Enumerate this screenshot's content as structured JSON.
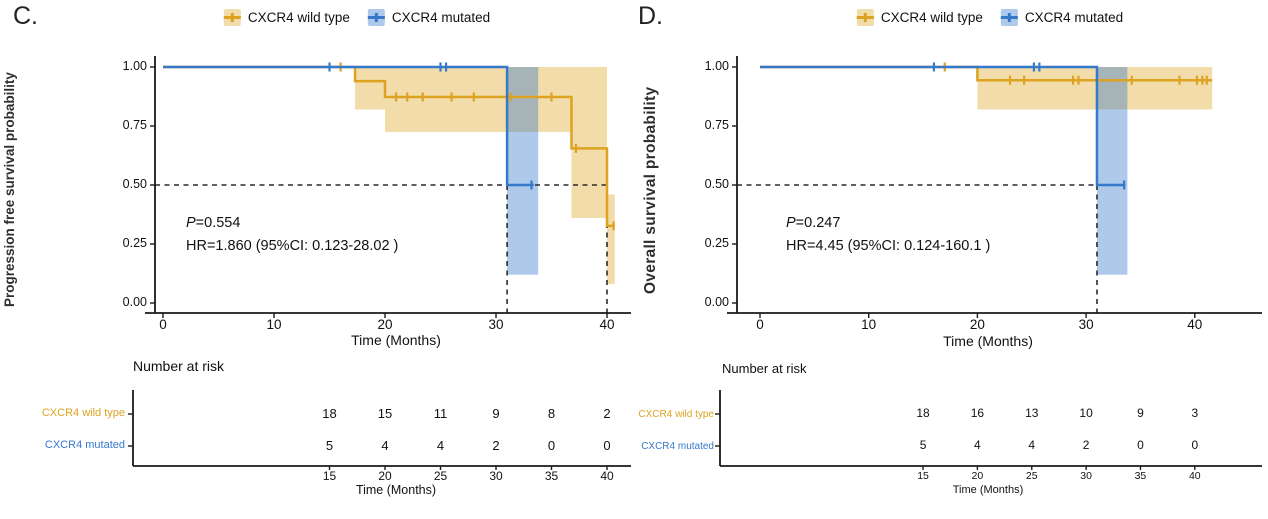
{
  "chart_data": [
    {
      "type": "km_survival",
      "panel_letter": "C.",
      "y_label": "Progression free survival probability",
      "x_label": "Time (Months)",
      "xlim": [
        0,
        42
      ],
      "ylim": [
        0,
        1
      ],
      "x_ticks": [
        0,
        10,
        20,
        30,
        40
      ],
      "y_ticks": [
        1.0,
        0.75,
        0.5,
        0.25,
        0.0
      ],
      "y_tick_labels": [
        "1.00",
        "0.75",
        "0.50",
        "0.25",
        "0.00"
      ],
      "grid": false,
      "legend_position": "top",
      "annotation": {
        "p_label": "P",
        "p_value": "=0.554",
        "hr": "HR=1.860 (95%CI: 0.123-28.02 )"
      },
      "median": {
        "h_y": 0.5,
        "h_x_end": 40,
        "v_x": [
          31,
          40
        ]
      },
      "series": [
        {
          "name": "CXCR4 wild type",
          "color": "#DDA320",
          "band_color": "rgba(221,163,32,0.38)",
          "steps": [
            [
              0,
              1
            ],
            [
              17.3,
              1
            ],
            [
              17.3,
              0.94
            ],
            [
              20,
              0.94
            ],
            [
              20,
              0.873
            ],
            [
              36.8,
              0.873
            ],
            [
              36.8,
              0.655
            ],
            [
              40,
              0.655
            ],
            [
              40,
              0.327
            ],
            [
              40.7,
              0.327
            ]
          ],
          "censors": [
            [
              16,
              1
            ],
            [
              21,
              0.873
            ],
            [
              22,
              0.873
            ],
            [
              23.4,
              0.873
            ],
            [
              26,
              0.873
            ],
            [
              28,
              0.873
            ],
            [
              31.3,
              0.873
            ],
            [
              35,
              0.873
            ],
            [
              37.2,
              0.655
            ],
            [
              40.6,
              0.327
            ]
          ],
          "band": [
            {
              "x0": 17.3,
              "x1": 20,
              "lo": 0.82,
              "hi": 1
            },
            {
              "x0": 20,
              "x1": 36.8,
              "lo": 0.725,
              "hi": 1
            },
            {
              "x0": 36.8,
              "x1": 40,
              "lo": 0.36,
              "hi": 1
            },
            {
              "x0": 40,
              "x1": 40.7,
              "lo": 0.08,
              "hi": 0.46
            }
          ]
        },
        {
          "name": "CXCR4 mutated",
          "color": "#3679CB",
          "band_color": "rgba(54,121,203,0.40)",
          "steps": [
            [
              0,
              1
            ],
            [
              31,
              1
            ],
            [
              31,
              0.5
            ],
            [
              33.4,
              0.5
            ]
          ],
          "censors": [
            [
              15,
              1
            ],
            [
              25,
              1
            ],
            [
              25.5,
              1
            ],
            [
              33.2,
              0.5
            ]
          ],
          "band": [
            {
              "x0": 31,
              "x1": 33.8,
              "lo": 0.12,
              "hi": 1
            }
          ]
        }
      ],
      "risk_table": {
        "title": "Number at risk",
        "x_label": "Time (Months)",
        "x_ticks": [
          15,
          20,
          25,
          30,
          35,
          40
        ],
        "rows": [
          {
            "label": "CXCR4 wild type",
            "values": [
              18,
              15,
              11,
              9,
              8,
              2
            ]
          },
          {
            "label": "CXCR4 mutated",
            "values": [
              5,
              4,
              4,
              2,
              0,
              0
            ]
          }
        ]
      }
    },
    {
      "type": "km_survival",
      "panel_letter": "D.",
      "y_label": "Overall survival probability",
      "x_label": "Time (Months)",
      "xlim": [
        0,
        42
      ],
      "ylim": [
        0,
        1
      ],
      "x_ticks": [
        0,
        10,
        20,
        30,
        40
      ],
      "y_ticks": [
        1.0,
        0.75,
        0.5,
        0.25,
        0.0
      ],
      "y_tick_labels": [
        "1.00",
        "0.75",
        "0.50",
        "0.25",
        "0.00"
      ],
      "grid": false,
      "legend_position": "top",
      "annotation": {
        "p_label": "P",
        "p_value": "=0.247",
        "hr": "HR=4.45 (95%CI: 0.124-160.1 )"
      },
      "median": {
        "h_y": 0.5,
        "h_x_end": 31,
        "v_x": [
          31
        ]
      },
      "series": [
        {
          "name": "CXCR4 wild type",
          "color": "#DDA320",
          "band_color": "rgba(221,163,32,0.38)",
          "steps": [
            [
              0,
              1
            ],
            [
              20,
              1
            ],
            [
              20,
              0.944
            ],
            [
              41.6,
              0.944
            ]
          ],
          "censors": [
            [
              17,
              1
            ],
            [
              23,
              0.944
            ],
            [
              24.3,
              0.944
            ],
            [
              28.8,
              0.944
            ],
            [
              29.3,
              0.944
            ],
            [
              31,
              0.944
            ],
            [
              34.2,
              0.944
            ],
            [
              38.6,
              0.944
            ],
            [
              40.2,
              0.944
            ],
            [
              40.7,
              0.944
            ],
            [
              41.1,
              0.944
            ]
          ],
          "band": [
            {
              "x0": 20,
              "x1": 41.6,
              "lo": 0.82,
              "hi": 1
            }
          ]
        },
        {
          "name": "CXCR4 mutated",
          "color": "#3679CB",
          "band_color": "rgba(54,121,203,0.40)",
          "steps": [
            [
              0,
              1
            ],
            [
              31,
              1
            ],
            [
              31,
              0.5
            ],
            [
              33.6,
              0.5
            ]
          ],
          "censors": [
            [
              16,
              1
            ],
            [
              25.2,
              1
            ],
            [
              25.7,
              1
            ],
            [
              33.5,
              0.5
            ]
          ],
          "band": [
            {
              "x0": 31,
              "x1": 33.8,
              "lo": 0.12,
              "hi": 1
            }
          ]
        }
      ],
      "risk_table": {
        "title": "Number at risk",
        "x_label": "Time (Months)",
        "x_ticks": [
          15,
          20,
          25,
          30,
          35,
          40
        ],
        "rows": [
          {
            "label": "CXCR4 wild type",
            "values": [
              18,
              16,
              13,
              10,
              9,
              3
            ]
          },
          {
            "label": "CXCR4 mutated",
            "values": [
              5,
              4,
              4,
              2,
              0,
              0
            ]
          }
        ]
      }
    }
  ]
}
